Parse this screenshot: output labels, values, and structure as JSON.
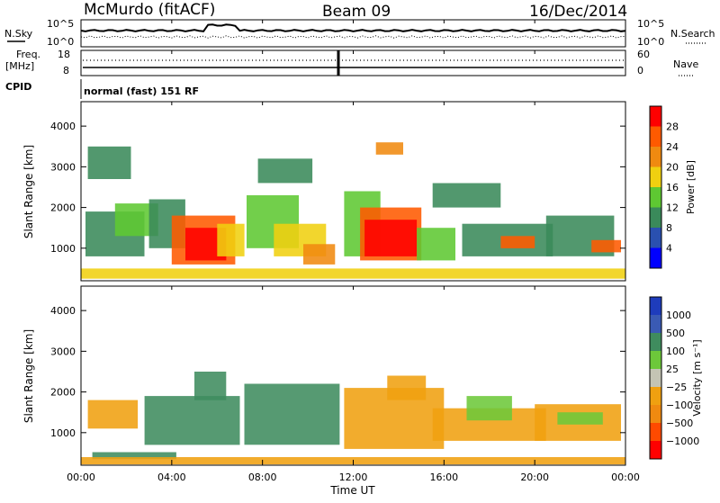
{
  "header": {
    "station": "McMurdo (fitACF)",
    "beam": "Beam 09",
    "date": "16/Dec/2014",
    "cpid_label": "CPID",
    "cpid_value": "normal (fast) 151 RF"
  },
  "top_panels": {
    "nsky_label": "N.Sky",
    "nsearch_label": "N.Search",
    "power_ticks_left": [
      "10^5",
      "10^0"
    ],
    "power_ticks_right": [
      "10^5",
      "10^0"
    ],
    "freq_label": "Freq.",
    "freq_unit": "[MHz]",
    "freq_ticks": [
      "18",
      "8"
    ],
    "nave_label": "Nave",
    "nave_ticks": [
      "60",
      "0"
    ]
  },
  "colors": {
    "power_scale": [
      "#0000ff",
      "#2a50b0",
      "#3a8a5a",
      "#5ec832",
      "#f0d010",
      "#f08a10",
      "#ff5a00",
      "#ff0000"
    ],
    "velocity_scale": [
      "#1e3cbc",
      "#3a5ab4",
      "#3f8c5e",
      "#6dc83a",
      "#c4c4b4",
      "#f0a010",
      "#f08a10",
      "#ff4a00",
      "#ff0000"
    ]
  },
  "chart_data": [
    {
      "type": "heatmap",
      "name": "power",
      "ylabel": "Slant Range [km]",
      "yticks": [
        1000,
        2000,
        3000,
        4000
      ],
      "ylim": [
        200,
        4600
      ],
      "colorbar_label": "Power [dB]",
      "colorbar_ticks": [
        "4",
        "8",
        "12",
        "16",
        "20",
        "24",
        "28"
      ],
      "regions": [
        {
          "t0": 0.2,
          "t1": 2.8,
          "r0": 800,
          "r1": 1900,
          "v": 8
        },
        {
          "t0": 0.3,
          "t1": 2.2,
          "r0": 2700,
          "r1": 3500,
          "v": 8
        },
        {
          "t0": 1.5,
          "t1": 3.4,
          "r0": 1300,
          "r1": 2100,
          "v": 12
        },
        {
          "t0": 3.0,
          "t1": 4.6,
          "r0": 1000,
          "r1": 2200,
          "v": 8
        },
        {
          "t0": 4.0,
          "t1": 6.8,
          "r0": 600,
          "r1": 1800,
          "v": 24
        },
        {
          "t0": 4.6,
          "t1": 6.4,
          "r0": 700,
          "r1": 1500,
          "v": 28
        },
        {
          "t0": 6.0,
          "t1": 7.2,
          "r0": 800,
          "r1": 1600,
          "v": 16
        },
        {
          "t0": 7.3,
          "t1": 9.6,
          "r0": 1000,
          "r1": 2300,
          "v": 12
        },
        {
          "t0": 8.5,
          "t1": 10.8,
          "r0": 800,
          "r1": 1600,
          "v": 16
        },
        {
          "t0": 9.8,
          "t1": 11.2,
          "r0": 600,
          "r1": 1100,
          "v": 20
        },
        {
          "t0": 7.8,
          "t1": 10.2,
          "r0": 2600,
          "r1": 3200,
          "v": 8
        },
        {
          "t0": 11.6,
          "t1": 13.2,
          "r0": 800,
          "r1": 2400,
          "v": 12
        },
        {
          "t0": 12.3,
          "t1": 15.0,
          "r0": 700,
          "r1": 2000,
          "v": 24
        },
        {
          "t0": 12.5,
          "t1": 14.8,
          "r0": 800,
          "r1": 1700,
          "v": 28
        },
        {
          "t0": 13.0,
          "t1": 14.2,
          "r0": 3300,
          "r1": 3600,
          "v": 20
        },
        {
          "t0": 14.8,
          "t1": 16.5,
          "r0": 700,
          "r1": 1500,
          "v": 12
        },
        {
          "t0": 15.5,
          "t1": 18.5,
          "r0": 2000,
          "r1": 2600,
          "v": 8
        },
        {
          "t0": 16.8,
          "t1": 20.8,
          "r0": 800,
          "r1": 1600,
          "v": 8
        },
        {
          "t0": 18.5,
          "t1": 20.0,
          "r0": 1000,
          "r1": 1300,
          "v": 24
        },
        {
          "t0": 20.5,
          "t1": 23.5,
          "r0": 800,
          "r1": 1800,
          "v": 8
        },
        {
          "t0": 22.5,
          "t1": 23.8,
          "r0": 900,
          "r1": 1200,
          "v": 24
        },
        {
          "t0": 0.0,
          "t1": 24.0,
          "r0": 250,
          "r1": 500,
          "v": 16
        }
      ]
    },
    {
      "type": "heatmap",
      "name": "velocity",
      "ylabel": "Slant Range [km]",
      "yticks": [
        1000,
        2000,
        3000,
        4000
      ],
      "ylim": [
        200,
        4600
      ],
      "colorbar_label": "Velocity [m s⁻¹]",
      "colorbar_ticks": [
        "1000",
        "500",
        "100",
        "25",
        "−25",
        "−100",
        "−500",
        "−1000"
      ],
      "regions": [
        {
          "t0": 0.3,
          "t1": 2.5,
          "r0": 1100,
          "r1": 1800,
          "v": -100
        },
        {
          "t0": 2.8,
          "t1": 7.0,
          "r0": 700,
          "r1": 1900,
          "v": 100
        },
        {
          "t0": 5.0,
          "t1": 6.4,
          "r0": 1800,
          "r1": 2500,
          "v": 100
        },
        {
          "t0": 7.2,
          "t1": 11.4,
          "r0": 700,
          "r1": 2200,
          "v": 100
        },
        {
          "t0": 0.5,
          "t1": 4.2,
          "r0": 350,
          "r1": 520,
          "v": 100
        },
        {
          "t0": 11.6,
          "t1": 16.0,
          "r0": 600,
          "r1": 2100,
          "v": -100
        },
        {
          "t0": 13.5,
          "t1": 15.2,
          "r0": 1800,
          "r1": 2400,
          "v": -100
        },
        {
          "t0": 15.5,
          "t1": 20.5,
          "r0": 800,
          "r1": 1600,
          "v": -100
        },
        {
          "t0": 17.0,
          "t1": 19.0,
          "r0": 1300,
          "r1": 1900,
          "v": 25
        },
        {
          "t0": 20.0,
          "t1": 23.8,
          "r0": 800,
          "r1": 1700,
          "v": -100
        },
        {
          "t0": 21.0,
          "t1": 23.0,
          "r0": 1200,
          "r1": 1500,
          "v": 25
        },
        {
          "t0": 0.0,
          "t1": 24.0,
          "r0": 220,
          "r1": 400,
          "v": -100
        }
      ]
    }
  ],
  "x_axis": {
    "ticks": [
      "00:00",
      "04:00",
      "08:00",
      "12:00",
      "16:00",
      "20:00",
      "00:00"
    ],
    "label": "Time UT"
  }
}
